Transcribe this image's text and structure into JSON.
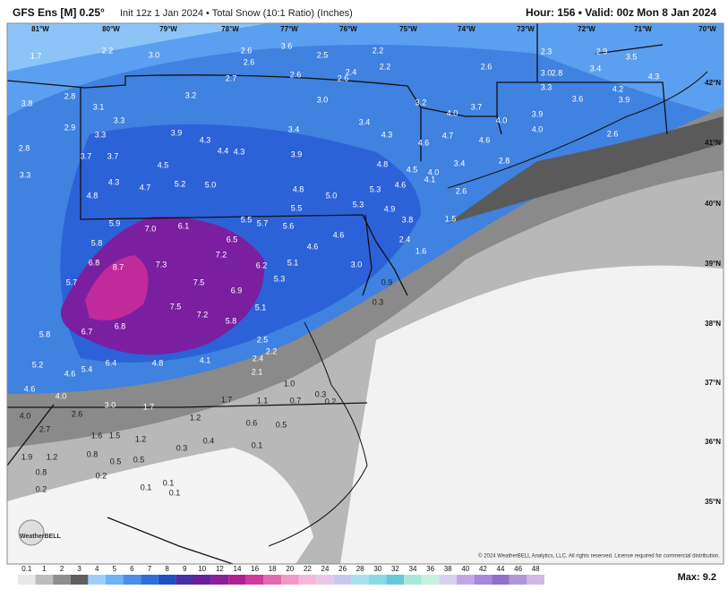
{
  "header": {
    "title": "GFS Ens [M] 0.25°",
    "subtitle": "Init 12z 1 Jan 2024 • Total Snow (10:1 Ratio) (Inches)",
    "valid": "Hour: 156 • Valid: 00z Mon 8 Jan 2024"
  },
  "map": {
    "lon_labels": [
      "81°W",
      "80°W",
      "79°W",
      "78°W",
      "77°W",
      "76°W",
      "75°W",
      "74°W",
      "73°W",
      "72°W",
      "71°W",
      "70°W"
    ],
    "lat_labels": [
      "42°N",
      "41°N",
      "40°N",
      "39°N",
      "38°N",
      "37°N",
      "36°N",
      "35°N"
    ],
    "values": [
      "1.7",
      "2.2",
      "3.0",
      "2.6",
      "3.6",
      "2.5",
      "2.2",
      "2.6",
      "2.7",
      "2.6",
      "2.6",
      "2.4",
      "2.2",
      "2.6",
      "2.3",
      "2.9",
      "3.5",
      "3.4",
      "3.0",
      "2.8",
      "3.3",
      "3.6",
      "4.2",
      "3.9",
      "4.3",
      "3.8",
      "2.8",
      "3.1",
      "3.2",
      "3.0",
      "3.2",
      "3.7",
      "4.0",
      "4.0",
      "3.9",
      "2.9",
      "3.3",
      "3.3",
      "3.9",
      "4.3",
      "4.4",
      "4.3",
      "3.4",
      "3.4",
      "4.3",
      "4.6",
      "4.7",
      "4.6",
      "4.0",
      "2.6",
      "2.8",
      "3.7",
      "3.7",
      "4.5",
      "3.9",
      "4.8",
      "4.5",
      "4.0",
      "3.4",
      "2.8",
      "3.3",
      "4.3",
      "4.7",
      "5.2",
      "5.0",
      "4.8",
      "5.0",
      "5.3",
      "5.3",
      "4.6",
      "4.1",
      "2.6",
      "4.8",
      "5.5",
      "4.9",
      "5.9",
      "7.0",
      "6.1",
      "5.5",
      "5.7",
      "5.6",
      "3.8",
      "1.5",
      "5.8",
      "6.5",
      "7.2",
      "4.6",
      "4.6",
      "2.4",
      "1.6",
      "6.8",
      "8.7",
      "7.3",
      "6.2",
      "5.1",
      "3.0",
      "5.7",
      "7.5",
      "6.9",
      "5.3",
      "0.9",
      "7.5",
      "7.2",
      "5.1",
      "6.8",
      "6.7",
      "5.8",
      "5.8",
      "0.3",
      "2.5",
      "2.2",
      "2.4",
      "5.2",
      "5.4",
      "6.4",
      "4.8",
      "4.1",
      "2.1",
      "4.6",
      "4.6",
      "4.0",
      "1.0",
      "1.7",
      "1.1",
      "0.7",
      "0.3",
      "0.2",
      "3.0",
      "1.7",
      "1.2",
      "4.0",
      "2.6",
      "0.6",
      "0.5",
      "2.7",
      "1.6",
      "1.5",
      "1.2",
      "0.4",
      "0.3",
      "0.1",
      "1.9",
      "1.2",
      "0.8",
      "0.5",
      "0.8",
      "0.2",
      "0.5",
      "0.2",
      "0.1",
      "0.1",
      "0.1"
    ],
    "copyright": "© 2024 WeatherBELL Analytics, LLC. All rights reserved. License required for commercial distribution.",
    "logo": "WeatherBELL"
  },
  "colorbar": {
    "labels": [
      "0.1",
      "1",
      "2",
      "3",
      "4",
      "5",
      "6",
      "7",
      "8",
      "9",
      "10",
      "12",
      "14",
      "16",
      "18",
      "20",
      "22",
      "24",
      "26",
      "28",
      "30",
      "32",
      "34",
      "36",
      "38",
      "40",
      "42",
      "44",
      "46",
      "48"
    ],
    "max": "Max: 9.2"
  }
}
